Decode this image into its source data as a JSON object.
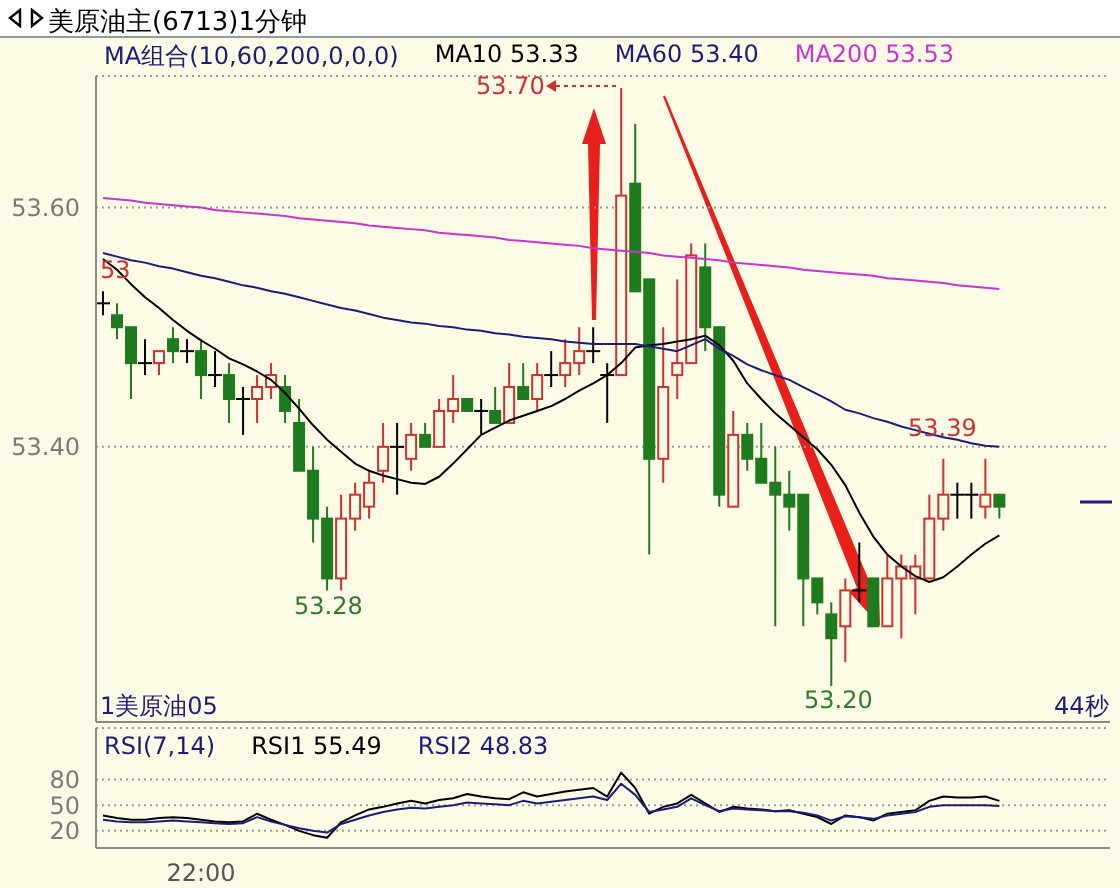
{
  "chart_data": [
    {
      "type": "candlestick",
      "title": "美原油主(6713)1分钟",
      "legend_title": "MA组合(10,60,200,0,0,0)",
      "legend": "top",
      "grid": "y",
      "tick_labels": "y",
      "categories": [
        null,
        null,
        null,
        null,
        null,
        null,
        null,
        null,
        null,
        null,
        null,
        null,
        null,
        null,
        null,
        null,
        null,
        null,
        null,
        null,
        null,
        null,
        null,
        null,
        null,
        null,
        null,
        null,
        null,
        null,
        null,
        null,
        null,
        null,
        null,
        null,
        null,
        null,
        null,
        null,
        null,
        null,
        null,
        null,
        null,
        null,
        null,
        null,
        null,
        null,
        null,
        null,
        null,
        null,
        null,
        null,
        null,
        null,
        null,
        null,
        null,
        null,
        null,
        null,
        null
      ],
      "ohlc": [
        [
          53.52,
          53.53,
          53.51,
          53.52
        ],
        [
          53.51,
          53.52,
          53.49,
          53.5
        ],
        [
          53.5,
          53.5,
          53.44,
          53.47
        ],
        [
          53.47,
          53.49,
          53.46,
          53.47
        ],
        [
          53.47,
          53.48,
          53.46,
          53.48
        ],
        [
          53.49,
          53.5,
          53.47,
          53.48
        ],
        [
          53.48,
          53.49,
          53.47,
          53.48
        ],
        [
          53.48,
          53.49,
          53.44,
          53.46
        ],
        [
          53.46,
          53.48,
          53.45,
          53.46
        ],
        [
          53.46,
          53.47,
          53.42,
          53.44
        ],
        [
          53.44,
          53.45,
          53.41,
          53.44
        ],
        [
          53.44,
          53.46,
          53.42,
          53.45
        ],
        [
          53.45,
          53.47,
          53.44,
          53.46
        ],
        [
          53.45,
          53.46,
          53.42,
          53.43
        ],
        [
          53.42,
          53.44,
          53.38,
          53.38
        ],
        [
          53.38,
          53.4,
          53.32,
          53.34
        ],
        [
          53.34,
          53.35,
          53.28,
          53.29
        ],
        [
          53.29,
          53.36,
          53.28,
          53.34
        ],
        [
          53.34,
          53.37,
          53.33,
          53.36
        ],
        [
          53.35,
          53.38,
          53.34,
          53.37
        ],
        [
          53.38,
          53.42,
          53.37,
          53.4
        ],
        [
          53.4,
          53.42,
          53.36,
          53.4
        ],
        [
          53.39,
          53.42,
          53.38,
          53.41
        ],
        [
          53.41,
          53.42,
          53.4,
          53.4
        ],
        [
          53.4,
          53.44,
          53.4,
          53.43
        ],
        [
          53.43,
          53.46,
          53.42,
          53.44
        ],
        [
          53.44,
          53.44,
          53.43,
          53.43
        ],
        [
          53.43,
          53.44,
          53.41,
          53.43
        ],
        [
          53.43,
          53.45,
          53.42,
          53.42
        ],
        [
          53.42,
          53.47,
          53.42,
          53.45
        ],
        [
          53.45,
          53.47,
          53.44,
          53.44
        ],
        [
          53.44,
          53.47,
          53.43,
          53.46
        ],
        [
          53.46,
          53.48,
          53.45,
          53.46
        ],
        [
          53.46,
          53.49,
          53.45,
          53.47
        ],
        [
          53.47,
          53.5,
          53.46,
          53.48
        ],
        [
          53.48,
          53.5,
          53.47,
          53.48
        ],
        [
          53.46,
          53.47,
          53.42,
          53.46
        ],
        [
          53.46,
          53.7,
          53.46,
          53.61
        ],
        [
          53.62,
          53.67,
          53.53,
          53.53
        ],
        [
          53.54,
          53.54,
          53.31,
          53.39
        ],
        [
          53.39,
          53.5,
          53.37,
          53.45
        ],
        [
          53.46,
          53.54,
          53.44,
          53.47
        ],
        [
          53.47,
          53.57,
          53.47,
          53.56
        ],
        [
          53.55,
          53.57,
          53.48,
          53.5
        ],
        [
          53.5,
          53.5,
          53.35,
          53.36
        ],
        [
          53.35,
          53.43,
          53.35,
          53.41
        ],
        [
          53.41,
          53.42,
          53.38,
          53.39
        ],
        [
          53.39,
          53.42,
          53.37,
          53.37
        ],
        [
          53.37,
          53.4,
          53.25,
          53.36
        ],
        [
          53.36,
          53.38,
          53.33,
          53.35
        ],
        [
          53.36,
          53.36,
          53.25,
          53.29
        ],
        [
          53.29,
          53.29,
          53.26,
          53.27
        ],
        [
          53.26,
          53.27,
          53.2,
          53.24
        ],
        [
          53.25,
          53.29,
          53.22,
          53.28
        ],
        [
          53.28,
          53.32,
          53.27,
          53.28
        ],
        [
          53.29,
          53.29,
          53.25,
          53.25
        ],
        [
          53.25,
          53.31,
          53.25,
          53.29
        ],
        [
          53.29,
          53.31,
          53.24,
          53.3
        ],
        [
          53.29,
          53.31,
          53.26,
          53.3
        ],
        [
          53.29,
          53.36,
          53.29,
          53.34
        ],
        [
          53.34,
          53.39,
          53.33,
          53.36
        ],
        [
          53.36,
          53.37,
          53.34,
          53.36
        ],
        [
          53.36,
          53.37,
          53.34,
          53.36
        ],
        [
          53.35,
          53.39,
          53.34,
          53.36
        ],
        [
          53.36,
          53.36,
          53.34,
          53.35
        ]
      ],
      "colors": [
        "#000000",
        "#1e7b1e",
        "#1e7b1e",
        "#000000",
        "#d03030",
        "#1e7b1e",
        "#000000",
        "#1e7b1e",
        "#000000",
        "#1e7b1e",
        "#000000",
        "#d03030",
        "#d03030",
        "#1e7b1e",
        "#1e7b1e",
        "#1e7b1e",
        "#1e7b1e",
        "#d03030",
        "#d03030",
        "#d03030",
        "#d03030",
        "#000000",
        "#d03030",
        "#1e7b1e",
        "#d03030",
        "#d03030",
        "#1e7b1e",
        "#000000",
        "#1e7b1e",
        "#d03030",
        "#1e7b1e",
        "#d03030",
        "#000000",
        "#d03030",
        "#d03030",
        "#000000",
        "#000000",
        "#d03030",
        "#1e7b1e",
        "#1e7b1e",
        "#d03030",
        "#d03030",
        "#d03030",
        "#1e7b1e",
        "#1e7b1e",
        "#d03030",
        "#1e7b1e",
        "#1e7b1e",
        "#1e7b1e",
        "#1e7b1e",
        "#1e7b1e",
        "#1e7b1e",
        "#1e7b1e",
        "#d03030",
        "#000000",
        "#1e7b1e",
        "#d03030",
        "#d03030",
        "#d03030",
        "#d03030",
        "#d03030",
        "#000000",
        "#000000",
        "#d03030",
        "#1e7b1e"
      ],
      "series": [
        {
          "type": "line",
          "name": "MA10 53.33",
          "color": "#000000",
          "values": [
            53.557,
            53.548,
            53.536,
            53.525,
            53.516,
            53.506,
            53.497,
            53.489,
            53.482,
            53.474,
            53.469,
            53.463,
            53.456,
            53.445,
            53.432,
            53.418,
            53.406,
            53.396,
            53.386,
            53.38,
            53.376,
            53.373,
            53.37,
            53.369,
            53.375,
            53.386,
            53.398,
            53.41,
            53.416,
            53.422,
            53.426,
            53.43,
            53.434,
            53.44,
            53.447,
            53.453,
            53.46,
            53.47,
            53.483,
            53.485,
            53.486,
            53.488,
            53.49,
            53.493,
            53.485,
            53.472,
            53.453,
            53.44,
            53.428,
            53.418,
            53.408,
            53.398,
            53.385,
            53.368,
            53.345,
            53.325,
            53.31,
            53.3,
            53.292,
            53.287,
            53.291,
            53.3,
            53.31,
            53.319,
            53.326
          ]
        },
        {
          "type": "line",
          "name": "MA60 53.40",
          "color": "#1c1c7a",
          "values": [
            53.562,
            53.559,
            53.556,
            53.554,
            53.551,
            53.549,
            53.546,
            53.543,
            53.541,
            53.538,
            53.535,
            53.533,
            53.53,
            53.528,
            53.525,
            53.522,
            53.519,
            53.516,
            53.514,
            53.511,
            53.508,
            53.506,
            53.504,
            53.503,
            53.501,
            53.5,
            53.498,
            53.497,
            53.495,
            53.494,
            53.492,
            53.491,
            53.49,
            53.488,
            53.487,
            53.486,
            53.486,
            53.486,
            53.486,
            53.484,
            53.482,
            53.48,
            53.485,
            53.49,
            53.482,
            53.476,
            53.469,
            53.464,
            53.46,
            53.456,
            53.45,
            53.444,
            53.438,
            53.431,
            53.428,
            53.424,
            53.421,
            53.417,
            53.414,
            53.411,
            53.408,
            53.406,
            53.403,
            53.401,
            53.4
          ]
        },
        {
          "type": "line",
          "name": "MA200 53.53",
          "color": "#cc33cc",
          "values": [
            53.608,
            53.607,
            53.606,
            53.604,
            53.603,
            53.602,
            53.601,
            53.6,
            53.598,
            53.597,
            53.596,
            53.595,
            53.594,
            53.593,
            53.591,
            53.59,
            53.589,
            53.588,
            53.587,
            53.585,
            53.584,
            53.583,
            53.582,
            53.581,
            53.579,
            53.578,
            53.577,
            53.576,
            53.575,
            53.573,
            53.572,
            53.571,
            53.57,
            53.569,
            53.568,
            53.566,
            53.565,
            53.564,
            53.563,
            53.562,
            53.56,
            53.559,
            53.558,
            53.557,
            53.556,
            53.554,
            53.553,
            53.552,
            53.551,
            53.55,
            53.548,
            53.547,
            53.546,
            53.545,
            53.544,
            53.543,
            53.541,
            53.54,
            53.539,
            53.538,
            53.537,
            53.535,
            53.534,
            53.533,
            53.532
          ]
        }
      ],
      "ylim": [
        53.17,
        53.71
      ],
      "yticks": [
        {
          "value": 53.4,
          "label": "53.40"
        },
        {
          "value": 53.6,
          "label": "53.60"
        }
      ],
      "annotations": [
        "53",
        "1美原油05",
        "44秒",
        "53.70",
        "53.28",
        "53.20",
        "53.39"
      ]
    },
    {
      "type": "line",
      "legend_title": "RSI(7,14)",
      "legend": "top left",
      "grid": "y",
      "categories": [
        null,
        null,
        null,
        null,
        null,
        null,
        null,
        "22:00",
        null,
        null,
        null,
        null,
        null,
        null,
        null,
        null,
        null,
        null,
        null,
        null,
        null,
        null,
        null,
        null,
        null,
        null,
        null,
        null,
        null,
        null,
        null,
        null,
        null,
        null,
        null,
        null,
        null,
        null,
        null,
        null,
        null,
        null,
        null,
        null,
        null,
        null,
        null,
        null,
        null,
        null,
        null,
        null,
        null,
        null,
        null,
        null,
        null,
        null,
        null,
        null,
        null,
        null,
        null,
        null,
        null
      ],
      "series": [
        {
          "name": "RSI1 55.49",
          "color": "#000000",
          "values": [
            38,
            35,
            33,
            33,
            35,
            36,
            35,
            33,
            31,
            30,
            31,
            40,
            33,
            27,
            20,
            15,
            12,
            30,
            38,
            45,
            48,
            52,
            55,
            52,
            56,
            58,
            63,
            60,
            58,
            57,
            65,
            60,
            63,
            66,
            68,
            70,
            60,
            88,
            70,
            40,
            48,
            52,
            62,
            52,
            42,
            48,
            46,
            45,
            43,
            44,
            40,
            36,
            28,
            38,
            36,
            32,
            40,
            42,
            44,
            55,
            60,
            59,
            59,
            60,
            55
          ]
        },
        {
          "name": "RSI2 48.83",
          "color": "#1c1c7a",
          "values": [
            33,
            31,
            30,
            30,
            31,
            32,
            31,
            30,
            29,
            28,
            29,
            36,
            31,
            27,
            23,
            20,
            18,
            28,
            33,
            38,
            42,
            45,
            47,
            46,
            48,
            50,
            53,
            52,
            51,
            50,
            55,
            52,
            54,
            56,
            58,
            60,
            56,
            75,
            62,
            42,
            45,
            48,
            58,
            50,
            43,
            46,
            45,
            44,
            43,
            43,
            41,
            38,
            32,
            37,
            36,
            34,
            38,
            40,
            42,
            48,
            50,
            50,
            50,
            50,
            49
          ]
        }
      ],
      "ylim": [
        0,
        140
      ],
      "yticks": [
        20,
        50,
        80
      ]
    }
  ]
}
